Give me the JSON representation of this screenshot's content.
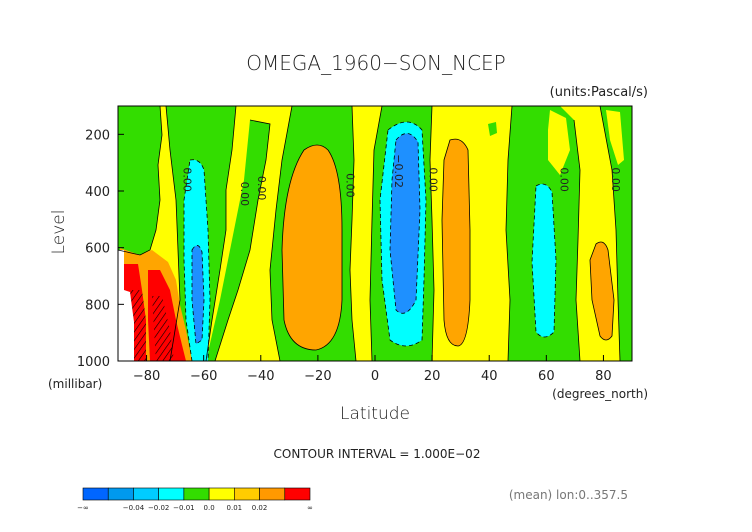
{
  "chart_data": {
    "type": "heatmap",
    "subtype": "filled-contour",
    "title": "OMEGA_1960−SON_NCEP",
    "units_label": "(units:Pascal/s)",
    "xlabel": "Latitude",
    "x_units_label": "(degrees_north)",
    "ylabel": "Level",
    "y_units_label": "(millibar)",
    "xlim": [
      -90,
      90
    ],
    "ylim": [
      1000,
      100
    ],
    "x_ticks": [
      -80,
      -60,
      -40,
      -20,
      0,
      20,
      40,
      60,
      80
    ],
    "x_tick_labels": [
      "−80",
      "−60",
      "−40",
      "−20",
      "0",
      "20",
      "40",
      "60",
      "80"
    ],
    "y_ticks": [
      200,
      400,
      600,
      800,
      1000
    ],
    "y_tick_labels": [
      "200",
      "400",
      "600",
      "800",
      "1000"
    ],
    "contour_interval_text": "CONTOUR INTERVAL = 1.000E−02",
    "mean_text": "(mean) lon:0..357.5",
    "contour_labels": [
      {
        "text": "0.00",
        "lat": -67,
        "level": 360
      },
      {
        "text": "0.00",
        "lat": -47,
        "level": 410
      },
      {
        "text": "0.00",
        "lat": -41,
        "level": 390
      },
      {
        "text": "0.00",
        "lat": -10,
        "level": 380
      },
      {
        "text": "−0.02",
        "lat": 7,
        "level": 330
      },
      {
        "text": "0.00",
        "lat": 19,
        "level": 360
      },
      {
        "text": "0.00",
        "lat": 65,
        "level": 360
      },
      {
        "text": "0.00",
        "lat": 83,
        "level": 360
      }
    ],
    "colorbar": {
      "colors": [
        "#0066ff",
        "#0099ee",
        "#00ccff",
        "#00ffff",
        "#33dd00",
        "#ffff00",
        "#ffcc00",
        "#ff9900",
        "#ff0000"
      ],
      "labels": [
        "−∞",
        "−0.04",
        "−0.02",
        "−0.01",
        "0.0",
        "0.01",
        "0.02",
        "∞"
      ]
    },
    "colors": {
      "positive_low": "#ffff00",
      "positive_mid": "#ffa500",
      "positive_high": "#ff0000",
      "zero_band": "#33dd00",
      "negative_low": "#00ffff",
      "negative_mid": "#1e90ff"
    }
  }
}
